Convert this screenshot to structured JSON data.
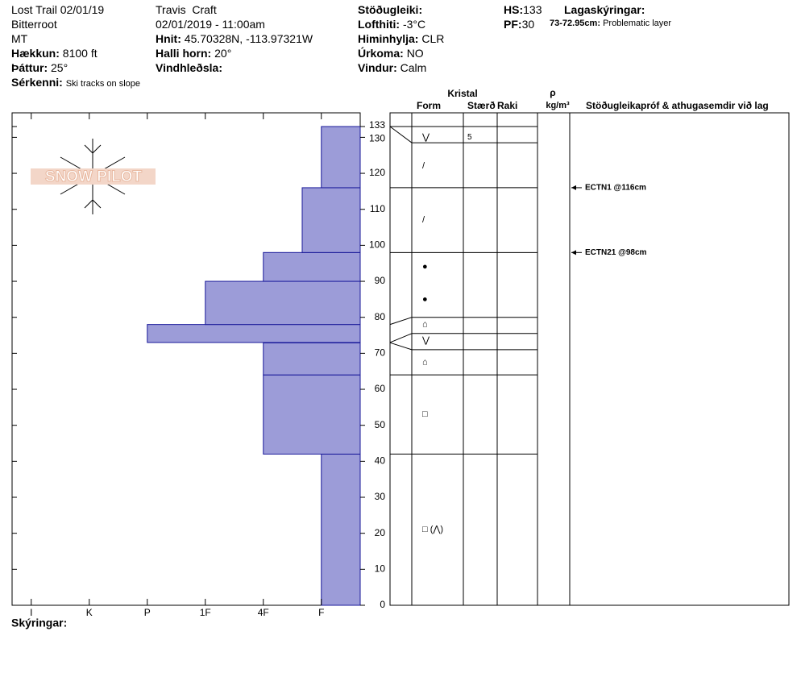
{
  "header": {
    "site": "Lost Trail 02/01/19",
    "range": "Bitterroot",
    "state": "MT",
    "elevation": {
      "label": "Hækkun:",
      "value": "8100 ft"
    },
    "aspect": {
      "label": "Þáttur:",
      "value": "25°"
    },
    "features": {
      "label": "Sérkenni:",
      "value": "Ski tracks on slope"
    },
    "observer": "Travis  Craft",
    "datetime": "02/01/2019 - 11:00am",
    "coords": {
      "label": "Hnit:",
      "value": "45.70328N, -113.97321W"
    },
    "slope": {
      "label": "Halli horn:",
      "value": "20°"
    },
    "wind_loading": {
      "label": "Vindhleðsla:"
    },
    "stability": {
      "label": "Stöðugleiki:"
    },
    "air_temp": {
      "label": "Lofthiti:",
      "value": "-3°C"
    },
    "sky": {
      "label": "Himinhylja:",
      "value": "CLR"
    },
    "precip": {
      "label": "Úrkoma:",
      "value": "NO"
    },
    "wind": {
      "label": "Vindur:",
      "value": "Calm"
    },
    "hs": {
      "label": "HS:",
      "value": 133
    },
    "pf": {
      "label": "PF:",
      "value": 30
    },
    "layer_notes": {
      "label": "Lagaskýringar:",
      "items": [
        {
          "label": "73-72.95cm:",
          "value": "Problematic layer"
        }
      ]
    },
    "logo": "SNOW PILOT"
  },
  "chart_data": {
    "type": "hardness-profile",
    "color": "#9c9cd8",
    "edge_color": "#1a1a9a",
    "layers": [
      {
        "bottom": 0,
        "top": 42,
        "hardness": 1
      },
      {
        "bottom": 42,
        "top": 64,
        "hardness": 2
      },
      {
        "bottom": 64,
        "top": 72.95,
        "hardness": 2
      },
      {
        "bottom": 72.95,
        "top": 73,
        "hardness": 2
      },
      {
        "bottom": 73,
        "top": 78,
        "hardness": 4
      },
      {
        "bottom": 78,
        "top": 90,
        "hardness": 3
      },
      {
        "bottom": 90,
        "top": 98,
        "hardness": 2
      },
      {
        "bottom": 98,
        "top": 116,
        "hardness": 1.33
      },
      {
        "bottom": 116,
        "top": 133,
        "hardness": 1
      }
    ],
    "xlim": [
      6.33,
      0.33
    ],
    "xticks": [
      {
        "value": 6,
        "label": "I"
      },
      {
        "value": 5,
        "label": "K"
      },
      {
        "value": 4,
        "label": "P"
      },
      {
        "value": 3,
        "label": "1F"
      },
      {
        "value": 2,
        "label": "4F"
      },
      {
        "value": 1,
        "label": "F"
      }
    ],
    "ylim": [
      0,
      133
    ],
    "yticks": [
      0,
      10,
      20,
      30,
      40,
      50,
      60,
      70,
      80,
      90,
      100,
      110,
      120,
      130,
      133
    ],
    "legend_title": "Skýringar:"
  },
  "profile_table": {
    "headers": {
      "crystal": "Kristal",
      "form": "Form",
      "size": "Stærð",
      "moisture": "Raki",
      "rho": "ρ",
      "density_unit": "kg/m³",
      "tests": "Stöðugleikapróf & athugasemdir við lag"
    },
    "boundaries": [
      133,
      128.5,
      116,
      98,
      80,
      75.5,
      71,
      64,
      42,
      0
    ],
    "grains": [
      {
        "height": 130,
        "form": "⋁",
        "size": 5
      },
      {
        "height": 122,
        "form": "/"
      },
      {
        "height": 107,
        "form": "/"
      },
      {
        "height": 94,
        "form": "●"
      },
      {
        "height": 85,
        "form": "●"
      },
      {
        "height": 78,
        "form": "⌂"
      },
      {
        "height": 73.5,
        "form": "⋁"
      },
      {
        "height": 67.5,
        "form": "⌂"
      },
      {
        "height": 53,
        "form": "□"
      },
      {
        "height": 21,
        "form": "□ (⋀)"
      }
    ],
    "tests": [
      {
        "height": 116,
        "text": "ECTN1 @116cm"
      },
      {
        "height": 98,
        "text": "ECTN21 @98cm"
      }
    ]
  }
}
